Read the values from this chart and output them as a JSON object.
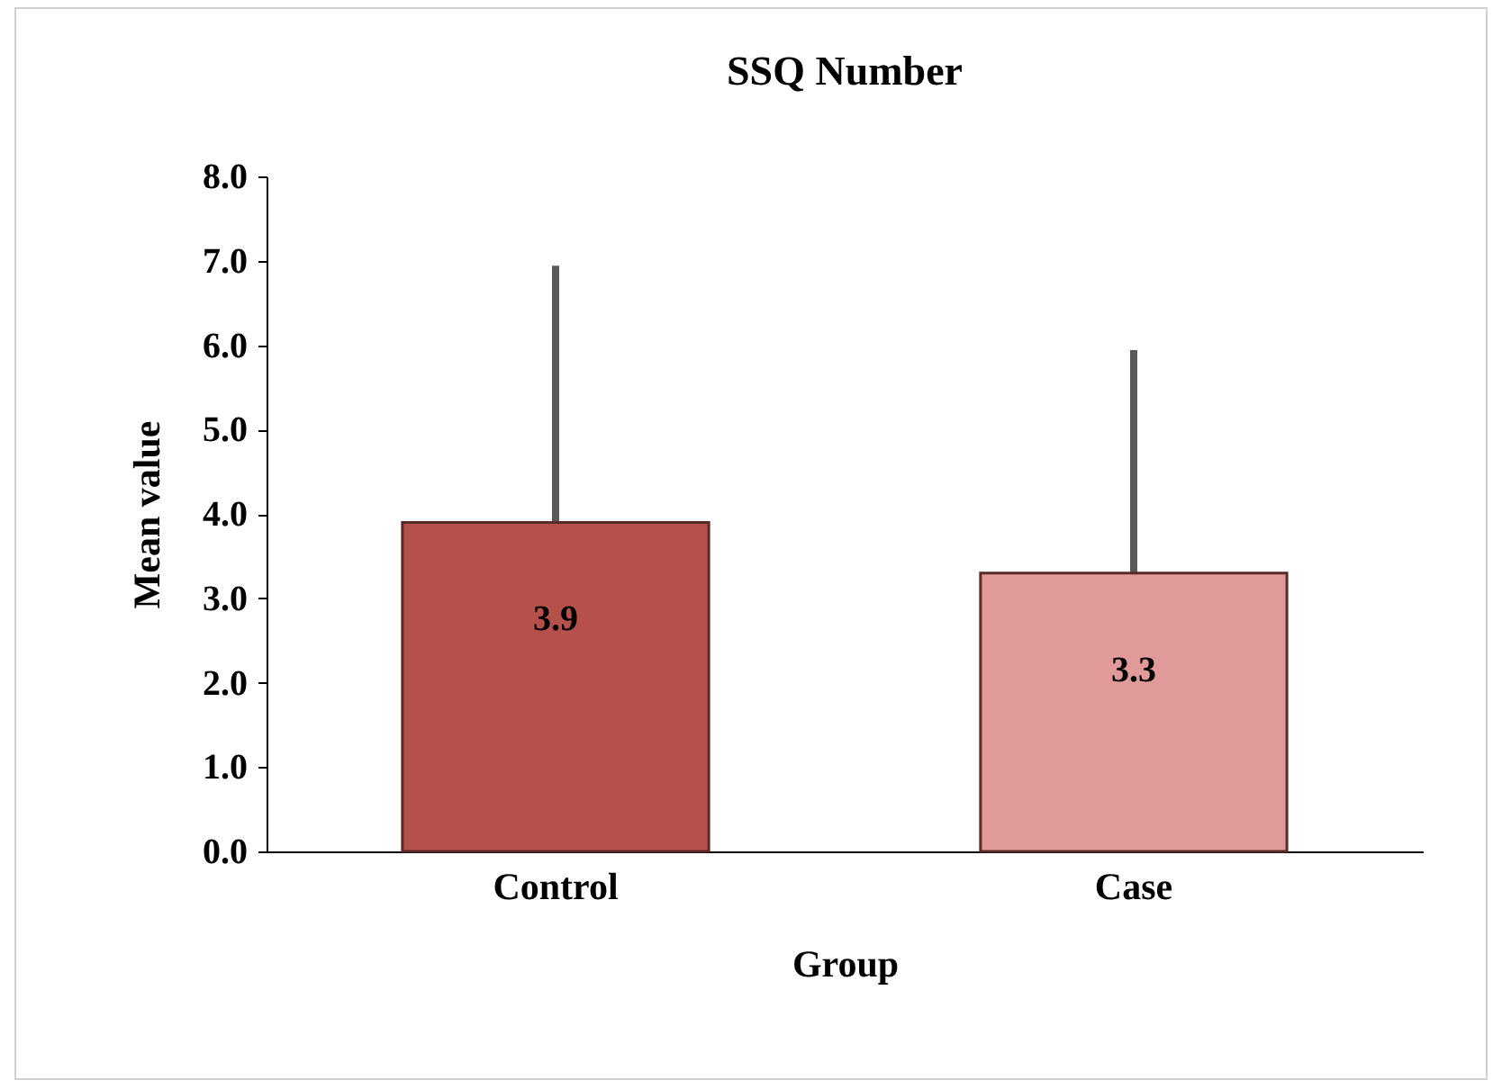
{
  "chart_data": {
    "type": "bar",
    "title": "SSQ Number",
    "xlabel": "Group",
    "ylabel": "Mean value",
    "categories": [
      "Control",
      "Case"
    ],
    "values": [
      3.9,
      3.3
    ],
    "colors": [
      "#b5504a",
      "#e09a9a"
    ],
    "errors": [
      [
        3.9,
        6.9
      ],
      [
        3.3,
        5.9
      ]
    ],
    "ylim": [
      0,
      8
    ],
    "yticks": [
      {
        "value": 0,
        "label": "0.0"
      },
      {
        "value": 1,
        "label": "1.0"
      },
      {
        "value": 2,
        "label": "2.0"
      },
      {
        "value": 3,
        "label": "3.0"
      },
      {
        "value": 4,
        "label": "4.0"
      },
      {
        "value": 5,
        "label": "5.0"
      },
      {
        "value": 6,
        "label": "6.0"
      },
      {
        "value": 7,
        "label": "7.0"
      },
      {
        "value": 8,
        "label": "8.0"
      }
    ],
    "data_labels": true,
    "grid": false,
    "legend": false
  }
}
